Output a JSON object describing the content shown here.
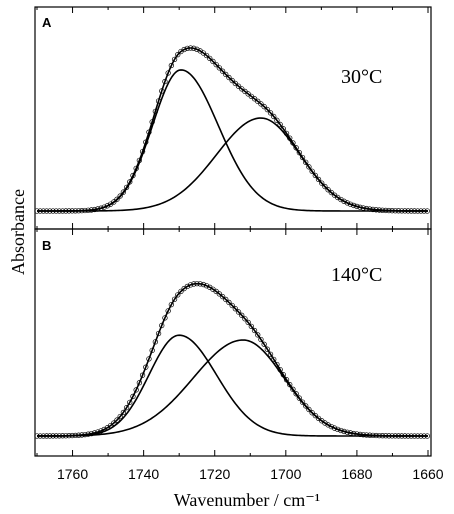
{
  "chart_data": {
    "type": "line",
    "xlabel": "Wavenumber / cm⁻¹",
    "ylabel": "Absorbance",
    "xlim": [
      1770,
      1660
    ],
    "x_reversed": true,
    "x_ticks": [
      1760,
      1740,
      1720,
      1700,
      1680,
      1660
    ],
    "y_ticks_shown": false,
    "legend": "none",
    "panels": [
      {
        "letter": "A",
        "temperature_label": "30°C",
        "ylim": [
          0,
          1.05
        ],
        "components": [
          {
            "center": 1729.5,
            "amplitude": 0.85,
            "width_left": 8.0,
            "width_right": 10.5
          },
          {
            "center": 1707.0,
            "amplitude": 0.56,
            "width_left": 12.5,
            "width_right": 11.0
          }
        ],
        "fit": "sum of components",
        "experimental_points": {
          "marker": "open-circle",
          "x_from": 1770,
          "x_to": 1660,
          "x_step": 0.9
        }
      },
      {
        "letter": "B",
        "temperature_label": "140°C",
        "ylim": [
          0,
          1.05
        ],
        "components": [
          {
            "center": 1730.0,
            "amplitude": 0.63,
            "width_left": 8.5,
            "width_right": 10.5
          },
          {
            "center": 1712.0,
            "amplitude": 0.6,
            "width_left": 14.0,
            "width_right": 11.5
          }
        ],
        "fit": "sum of components",
        "experimental_points": {
          "marker": "open-circle",
          "x_from": 1770,
          "x_to": 1660,
          "x_step": 0.9
        }
      }
    ]
  }
}
